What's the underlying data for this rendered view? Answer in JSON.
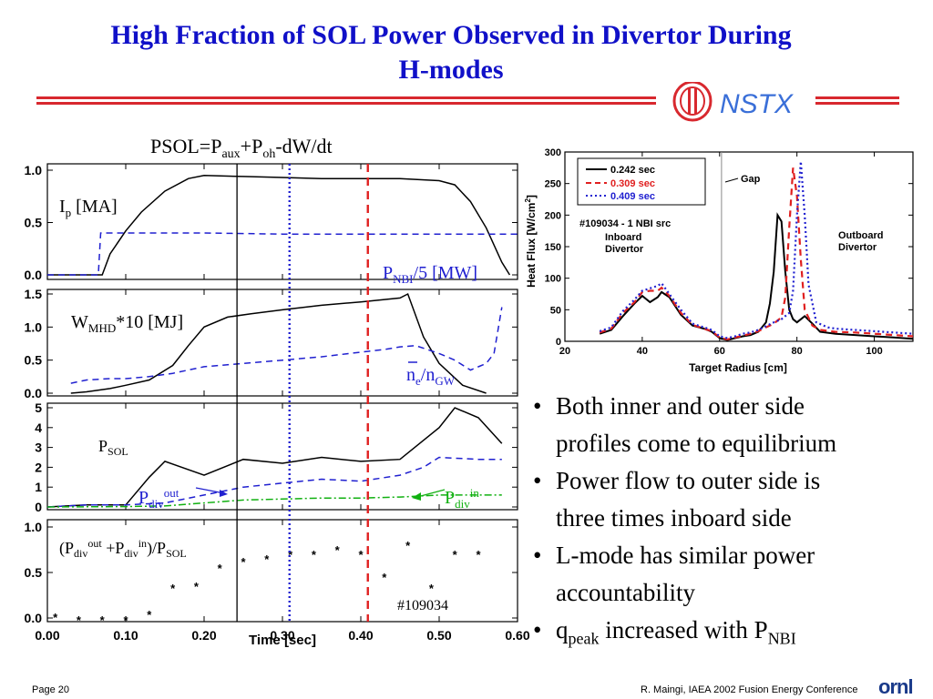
{
  "slide": {
    "title_line1": "High Fraction of SOL Power Observed in Divertor During",
    "title_line2": "H-modes",
    "logo_text": "NSTX",
    "footer_page": "Page 20",
    "footer_credit": "R. Maingi, IAEA 2002 Fusion Energy Conference",
    "footer_logo": "ornl",
    "colors": {
      "title": "#1010c8",
      "rule": "#d8282e",
      "logo": "#d8282e",
      "nstx": "#3a6fd8"
    }
  },
  "bullets": [
    {
      "lines": [
        "Both inner and outer side",
        "profiles come to equilibrium"
      ]
    },
    {
      "lines": [
        "Power flow to outer side is",
        "three times inboard side"
      ]
    },
    {
      "lines": [
        "L-mode has similar power",
        "accountability"
      ]
    },
    {
      "q": "q",
      "q_sub": "peak",
      "mid": " increased with P",
      "p_sub": "NBI"
    }
  ],
  "chart_data": [
    {
      "type": "line",
      "title": "PSOL=Paux+Poh-dW/dt",
      "title_parts": {
        "a": "PSOL=P",
        "a_sub": "aux",
        "b": "+P",
        "b_sub": "oh",
        "c": "-dW/dt"
      },
      "xlabel": "Time [sec]",
      "xlim": [
        0,
        0.6
      ],
      "xticks": [
        "0.00",
        "0.10",
        "0.20",
        "0.30",
        "0.40",
        "0.50",
        "0.60"
      ],
      "vlines": [
        {
          "x": 0.242,
          "color": "#000000",
          "style": "solid"
        },
        {
          "x": 0.309,
          "color": "#2020d0",
          "style": "dotted"
        },
        {
          "x": 0.409,
          "color": "#e02020",
          "style": "dashed"
        }
      ],
      "shot": "#109034",
      "panels": [
        {
          "ylim": [
            0,
            1.0
          ],
          "yticks": [
            "0.0",
            "0.5",
            "1.0"
          ],
          "labels": {
            "ip": "I",
            "ip_sub": "p",
            "ip_rest": " [MA]",
            "pnbi": "P",
            "pnbi_sub": "NBI",
            "pnbi_rest": "/5 [MW]"
          },
          "series": [
            {
              "x": [
                0.0,
                0.03,
                0.05,
                0.07,
                0.08,
                0.1,
                0.12,
                0.15,
                0.18,
                0.2,
                0.25,
                0.3,
                0.35,
                0.4,
                0.45,
                0.5,
                0.52,
                0.54,
                0.56,
                0.58,
                0.59
              ],
              "y": [
                0,
                0,
                0,
                0,
                0.2,
                0.42,
                0.6,
                0.8,
                0.92,
                0.95,
                0.94,
                0.93,
                0.92,
                0.92,
                0.92,
                0.9,
                0.86,
                0.7,
                0.45,
                0.12,
                0.0
              ],
              "color": "#000000",
              "dash": "solid"
            },
            {
              "x": [
                0.0,
                0.065,
                0.068,
                0.1,
                0.2,
                0.3,
                0.4,
                0.5,
                0.6
              ],
              "y": [
                0,
                0,
                0.4,
                0.4,
                0.4,
                0.39,
                0.39,
                0.39,
                0.39
              ],
              "color": "#2020d0",
              "dash": "dashed"
            }
          ]
        },
        {
          "ylim": [
            0,
            1.5
          ],
          "yticks": [
            "0.0",
            "0.5",
            "1.0",
            "1.5"
          ],
          "labels": {
            "w": "W",
            "w_sub": "MHD",
            "w_rest": "*10 [MJ]",
            "ne": "n",
            "ne_sub": "e",
            "ne_mid": "/n",
            "ne_sub2": "GW"
          },
          "series": [
            {
              "x": [
                0.03,
                0.05,
                0.08,
                0.1,
                0.13,
                0.16,
                0.18,
                0.2,
                0.23,
                0.26,
                0.3,
                0.35,
                0.4,
                0.45,
                0.46,
                0.48,
                0.5,
                0.53,
                0.56
              ],
              "y": [
                0,
                0.02,
                0.07,
                0.12,
                0.2,
                0.42,
                0.72,
                1.0,
                1.15,
                1.2,
                1.26,
                1.33,
                1.38,
                1.44,
                1.5,
                0.85,
                0.45,
                0.12,
                0.0
              ],
              "color": "#000000",
              "dash": "solid"
            },
            {
              "x": [
                0.03,
                0.05,
                0.08,
                0.1,
                0.13,
                0.16,
                0.2,
                0.25,
                0.3,
                0.35,
                0.4,
                0.43,
                0.45,
                0.47,
                0.5,
                0.52,
                0.54,
                0.56,
                0.57,
                0.58
              ],
              "y": [
                0.15,
                0.2,
                0.22,
                0.22,
                0.25,
                0.3,
                0.4,
                0.45,
                0.5,
                0.55,
                0.62,
                0.66,
                0.7,
                0.72,
                0.6,
                0.5,
                0.35,
                0.45,
                0.6,
                1.3
              ],
              "color": "#2020d0",
              "dash": "dashed"
            }
          ]
        },
        {
          "ylim": [
            0,
            5
          ],
          "yticks": [
            "0",
            "1",
            "2",
            "3",
            "4",
            "5"
          ],
          "labels": {
            "psol": "P",
            "psol_sub": "SOL",
            "pout": "P",
            "pout_sub": "div",
            "pout_sup": "out",
            "pin": "P",
            "pin_sub": "div",
            "pin_sup": "in"
          },
          "series": [
            {
              "x": [
                0.0,
                0.05,
                0.1,
                0.13,
                0.15,
                0.2,
                0.25,
                0.3,
                0.35,
                0.4,
                0.45,
                0.5,
                0.52,
                0.55,
                0.58
              ],
              "y": [
                0,
                0.1,
                0.1,
                1.5,
                2.3,
                1.6,
                2.4,
                2.2,
                2.5,
                2.3,
                2.4,
                4.0,
                5.0,
                4.5,
                3.2
              ],
              "color": "#000000",
              "dash": "solid"
            },
            {
              "x": [
                0.0,
                0.05,
                0.1,
                0.15,
                0.2,
                0.25,
                0.3,
                0.35,
                0.4,
                0.45,
                0.48,
                0.5,
                0.55,
                0.58
              ],
              "y": [
                0,
                0.1,
                0.1,
                0.2,
                0.6,
                1.0,
                1.2,
                1.4,
                1.3,
                1.6,
                2.0,
                2.5,
                2.4,
                2.4
              ],
              "color": "#2020d0",
              "dash": "dashed"
            },
            {
              "x": [
                0.0,
                0.1,
                0.15,
                0.2,
                0.25,
                0.3,
                0.35,
                0.4,
                0.45,
                0.5,
                0.55,
                0.58
              ],
              "y": [
                0,
                0.02,
                0.05,
                0.2,
                0.35,
                0.4,
                0.45,
                0.45,
                0.5,
                0.6,
                0.6,
                0.6
              ],
              "color": "#10b010",
              "dash": "dashdot"
            }
          ]
        },
        {
          "ylim": [
            0,
            1.0
          ],
          "yticks": [
            "0.0",
            "0.5",
            "1.0"
          ],
          "labels": {
            "ratio": "(P",
            "r_sub1": "div",
            "r_sup1": "out",
            "r_mid": " +P",
            "r_sub2": "div",
            "r_sup2": "in",
            "r_end": ")/P",
            "r_sub3": "SOL"
          },
          "series": [
            {
              "x": [
                0.01,
                0.04,
                0.07,
                0.1,
                0.13,
                0.16,
                0.19,
                0.22,
                0.25,
                0.28,
                0.31,
                0.34,
                0.37,
                0.4,
                0.43,
                0.46,
                0.49,
                0.52,
                0.55
              ],
              "y": [
                0.01,
                -0.02,
                -0.02,
                -0.02,
                0.04,
                0.33,
                0.35,
                0.55,
                0.62,
                0.65,
                0.7,
                0.7,
                0.75,
                0.7,
                0.45,
                0.8,
                0.33,
                0.7,
                0.7
              ],
              "color": "#000000",
              "marker": "star"
            }
          ]
        }
      ]
    },
    {
      "type": "line",
      "xlabel": "Target Radius [cm]",
      "ylabel": "Heat Flux [W/cm2]",
      "ylabel_parts": {
        "a": "Heat Flux [W/cm",
        "sup": "2",
        "b": "]"
      },
      "xlim": [
        20,
        110
      ],
      "ylim": [
        0,
        300
      ],
      "xticks": [
        "20",
        "40",
        "60",
        "80",
        "100"
      ],
      "yticks": [
        "0",
        "50",
        "100",
        "150",
        "200",
        "250",
        "300"
      ],
      "legend": [
        "0.242 sec",
        "0.309 sec",
        "0.409 sec"
      ],
      "annotations": {
        "gap": "Gap",
        "shot": "#109034 - 1 NBI src",
        "inboard1": "Inboard",
        "inboard2": "Divertor",
        "outboard1": "Outboard",
        "outboard2": "Divertor"
      },
      "gap_x": 60.5,
      "series": [
        {
          "name": "0.242 sec",
          "color": "#000000",
          "dash": "solid",
          "x": [
            29,
            32,
            35,
            38,
            40,
            42,
            44,
            45,
            47,
            50,
            53,
            56,
            58,
            60,
            62,
            64,
            66,
            68,
            70,
            72,
            73,
            74,
            75,
            76,
            77,
            78,
            79,
            80,
            82,
            84,
            86,
            90,
            95,
            100,
            105,
            110
          ],
          "y": [
            12,
            18,
            40,
            60,
            72,
            62,
            70,
            78,
            70,
            42,
            25,
            20,
            15,
            5,
            2,
            5,
            8,
            10,
            15,
            30,
            60,
            110,
            200,
            190,
            110,
            50,
            35,
            30,
            40,
            28,
            15,
            12,
            10,
            8,
            6,
            4
          ]
        },
        {
          "name": "0.309 sec",
          "color": "#e02020",
          "dash": "dashed",
          "x": [
            29,
            32,
            35,
            38,
            40,
            42,
            44,
            45,
            47,
            50,
            53,
            56,
            58,
            60,
            62,
            64,
            66,
            68,
            70,
            72,
            74,
            76,
            77,
            78,
            79,
            80,
            81,
            82,
            84,
            86,
            90,
            95,
            100,
            105,
            110
          ],
          "y": [
            14,
            20,
            45,
            62,
            78,
            80,
            80,
            85,
            72,
            45,
            26,
            20,
            16,
            6,
            3,
            6,
            9,
            12,
            16,
            22,
            28,
            38,
            70,
            180,
            275,
            230,
            130,
            50,
            25,
            18,
            15,
            14,
            12,
            10,
            8
          ]
        },
        {
          "name": "0.409 sec",
          "color": "#2020d0",
          "dash": "dotted",
          "x": [
            29,
            32,
            35,
            38,
            40,
            42,
            44,
            45,
            47,
            50,
            53,
            56,
            58,
            60,
            62,
            64,
            66,
            68,
            70,
            72,
            74,
            76,
            78,
            79,
            80,
            81,
            82,
            83,
            85,
            88,
            90,
            95,
            100,
            105,
            110
          ],
          "y": [
            16,
            22,
            48,
            66,
            80,
            84,
            88,
            92,
            75,
            50,
            28,
            22,
            18,
            8,
            5,
            8,
            12,
            14,
            18,
            24,
            30,
            35,
            45,
            80,
            200,
            285,
            200,
            90,
            30,
            22,
            20,
            18,
            16,
            14,
            12
          ]
        }
      ]
    }
  ]
}
